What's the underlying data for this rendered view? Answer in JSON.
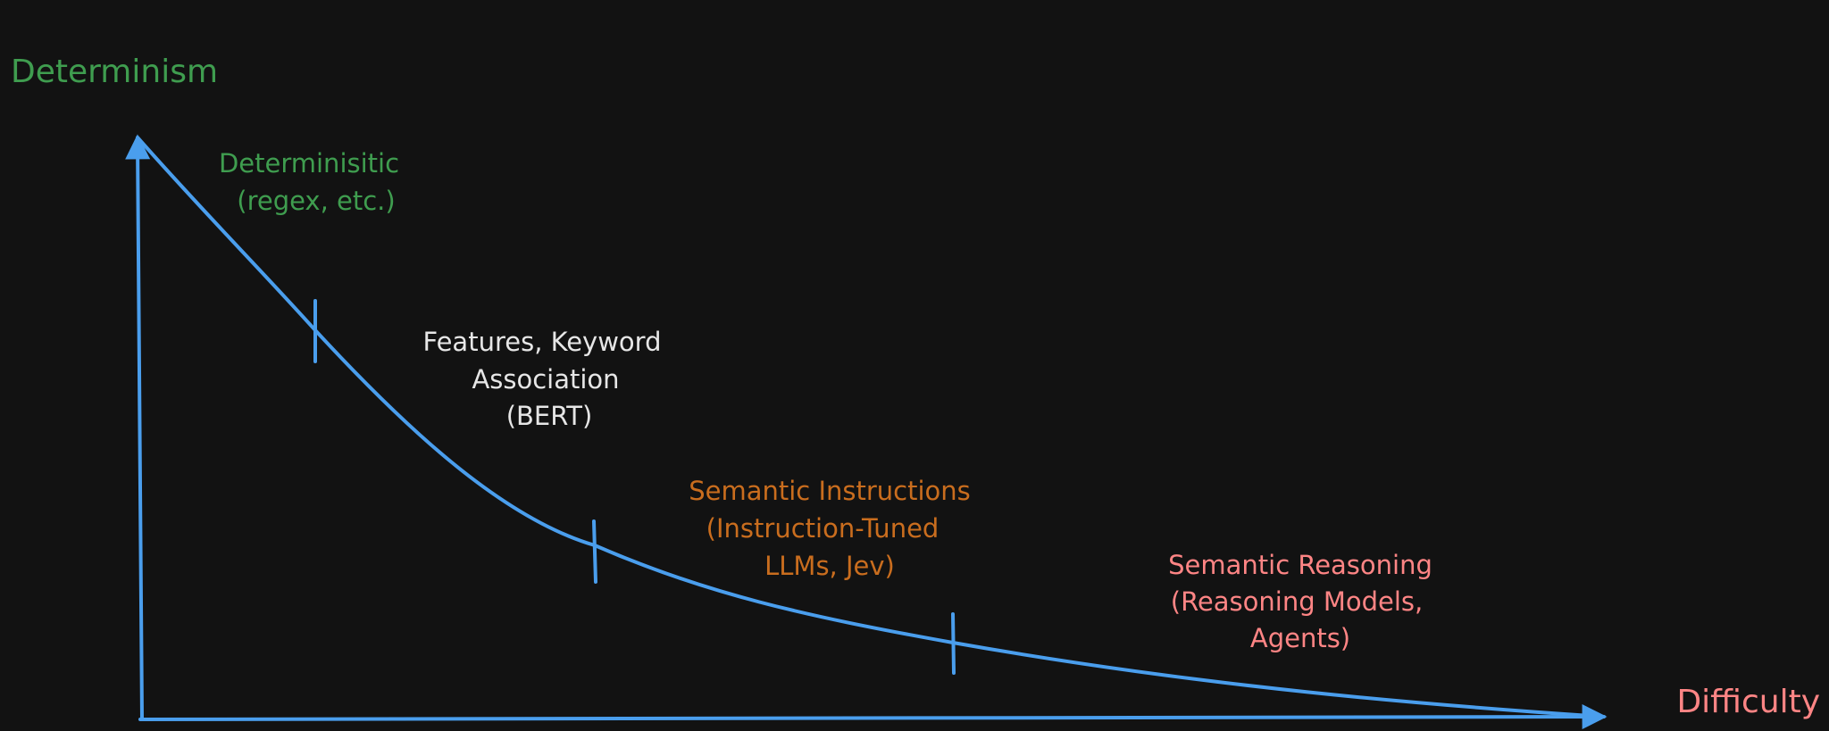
{
  "axes": {
    "y_label": "Determinism",
    "x_label": "Difficulty"
  },
  "regions": [
    {
      "lines": [
        "Determinisitic",
        "(regex, etc.)"
      ]
    },
    {
      "lines": [
        "Features, Keyword",
        "Association",
        "(BERT)"
      ]
    },
    {
      "lines": [
        "Semantic Instructions",
        "(Instruction-Tuned",
        "LLMs, Jev)"
      ]
    },
    {
      "lines": [
        "Semantic Reasoning",
        "(Reasoning Models,",
        "Agents)"
      ]
    }
  ]
}
